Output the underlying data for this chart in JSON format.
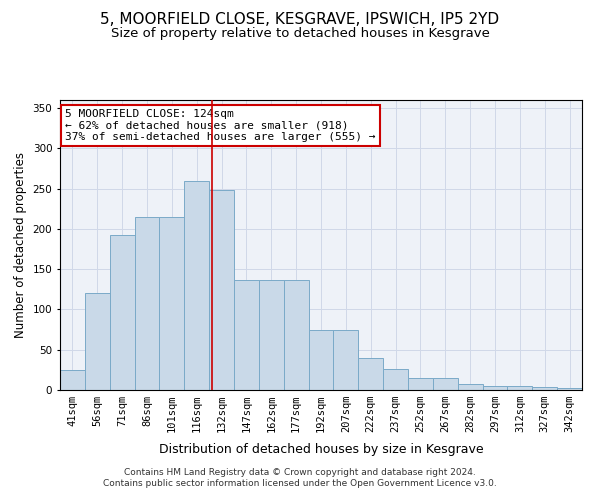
{
  "title": "5, MOORFIELD CLOSE, KESGRAVE, IPSWICH, IP5 2YD",
  "subtitle": "Size of property relative to detached houses in Kesgrave",
  "xlabel": "Distribution of detached houses by size in Kesgrave",
  "ylabel": "Number of detached properties",
  "categories": [
    "41sqm",
    "56sqm",
    "71sqm",
    "86sqm",
    "101sqm",
    "116sqm",
    "132sqm",
    "147sqm",
    "162sqm",
    "177sqm",
    "192sqm",
    "207sqm",
    "222sqm",
    "237sqm",
    "252sqm",
    "267sqm",
    "282sqm",
    "297sqm",
    "312sqm",
    "327sqm",
    "342sqm"
  ],
  "values": [
    25,
    120,
    193,
    215,
    215,
    260,
    248,
    137,
    137,
    136,
    75,
    75,
    40,
    26,
    15,
    15,
    8,
    5,
    5,
    4,
    3
  ],
  "bar_color": "#c9d9e8",
  "bar_edge_color": "#7aaac8",
  "vline_x": 5.6,
  "vline_color": "#cc0000",
  "annotation_text": "5 MOORFIELD CLOSE: 124sqm\n← 62% of detached houses are smaller (918)\n37% of semi-detached houses are larger (555) →",
  "annotation_box_color": "#ffffff",
  "annotation_box_edge": "#cc0000",
  "grid_color": "#d0d8e8",
  "background_color": "#eef2f8",
  "footer_text": "Contains HM Land Registry data © Crown copyright and database right 2024.\nContains public sector information licensed under the Open Government Licence v3.0.",
  "ylim": [
    0,
    360
  ],
  "title_fontsize": 11,
  "subtitle_fontsize": 9.5,
  "ylabel_fontsize": 8.5,
  "xlabel_fontsize": 9,
  "tick_fontsize": 7.5,
  "footer_fontsize": 6.5,
  "annot_fontsize": 8
}
